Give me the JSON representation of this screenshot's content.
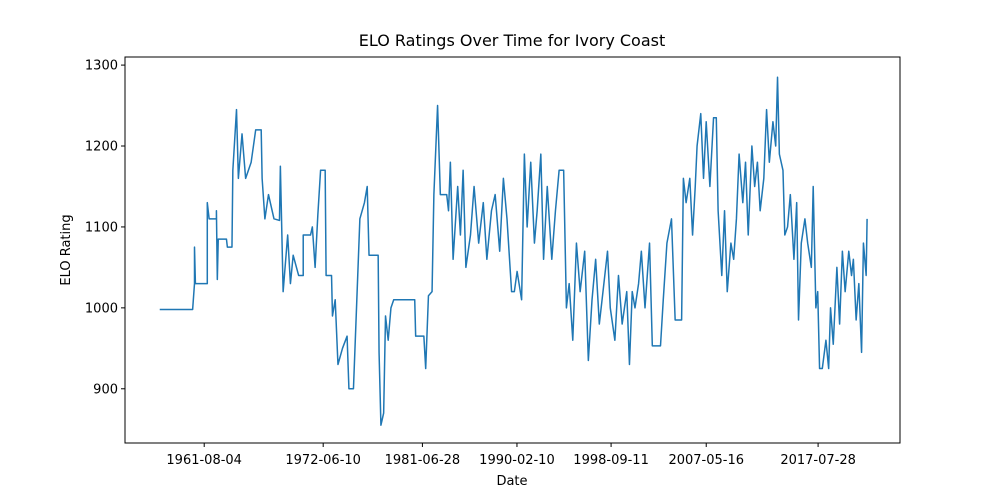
{
  "chart_data": {
    "type": "line",
    "title": "ELO Ratings Over Time for Ivory Coast",
    "xlabel": "Date",
    "ylabel": "ELO Rating",
    "color": "#1f77b4",
    "x": [
      "1957-07-15",
      "1960-07-15",
      "1960-09-15",
      "1960-09-15",
      "1960-10-15",
      "1961-11-15",
      "1961-11-15",
      "1962-01-15",
      "1962-09-15",
      "1962-09-15",
      "1962-10-15",
      "1962-11-15",
      "1963-08-15",
      "1963-09-15",
      "1964-02-15",
      "1964-03-15",
      "1964-07-15",
      "1964-09-15",
      "1965-01-15",
      "1965-05-15",
      "1965-11-15",
      "1966-04-15",
      "1966-10-15",
      "1966-11-15",
      "1967-02-15",
      "1967-06-15",
      "1967-12-15",
      "1968-06-15",
      "1968-07-15",
      "1968-10-15",
      "1969-03-15",
      "1969-06-15",
      "1969-09-15",
      "1970-03-15",
      "1970-08-15",
      "1970-08-15",
      "1971-04-15",
      "1971-06-15",
      "1971-09-15",
      "1971-12-15",
      "1972-03-15",
      "1972-08-15",
      "1972-09-15",
      "1973-03-15",
      "1973-04-15",
      "1973-07-15",
      "1973-10-15",
      "1974-03-15",
      "1974-08-15",
      "1974-10-15",
      "1975-03-15",
      "1975-06-15",
      "1975-10-15",
      "1976-03-15",
      "1976-06-15",
      "1976-08-15",
      "1977-06-15",
      "1977-07-15",
      "1977-09-15",
      "1977-12-15",
      "1978-02-15",
      "1978-05-15",
      "1978-08-15",
      "1978-11-15",
      "1980-10-15",
      "1980-11-15",
      "1981-08-15",
      "1981-10-15",
      "1982-01-15",
      "1982-05-15",
      "1982-07-15",
      "1982-11-15",
      "1983-02-15",
      "1983-09-15",
      "1983-11-15",
      "1984-01-15",
      "1984-04-15",
      "1984-09-15",
      "1984-12-15",
      "1985-03-15",
      "1985-06-15",
      "1985-11-15",
      "1986-03-15",
      "1986-08-15",
      "1987-01-15",
      "1987-05-15",
      "1987-10-15",
      "1988-02-15",
      "1988-07-15",
      "1988-11-15",
      "1989-03-15",
      "1989-08-15",
      "1989-11-15",
      "1990-02-15",
      "1990-07-15",
      "1990-10-15",
      "1991-01-15",
      "1991-05-15",
      "1991-09-15",
      "1991-12-15",
      "1992-04-15",
      "1992-07-15",
      "1992-11-15",
      "1993-04-15",
      "1993-08-15",
      "1993-12-15",
      "1994-05-15",
      "1994-08-15",
      "1994-11-15",
      "1995-03-15",
      "1995-07-15",
      "1995-11-15",
      "1996-04-15",
      "1996-08-15",
      "1996-12-15",
      "1997-04-15",
      "1997-08-15",
      "1997-12-15",
      "1998-05-15",
      "1998-08-15",
      "1999-01-15",
      "1999-05-15",
      "1999-09-15",
      "2000-02-15",
      "2000-05-15",
      "2000-08-15",
      "2000-11-15",
      "2001-03-15",
      "2001-06-15",
      "2001-10-15",
      "2002-03-15",
      "2002-06-15",
      "2003-03-15",
      "2003-06-15",
      "2003-10-15",
      "2004-03-15",
      "2004-07-15",
      "2005-02-15",
      "2005-04-15",
      "2005-07-15",
      "2005-11-15",
      "2006-02-15",
      "2006-05-15",
      "2006-07-15",
      "2006-11-15",
      "2007-02-15",
      "2007-05-15",
      "2007-09-15",
      "2008-01-15",
      "2008-04-15",
      "2008-06-15",
      "2008-10-15",
      "2009-01-15",
      "2009-04-15",
      "2009-08-15",
      "2009-11-15",
      "2010-02-15",
      "2010-05-15",
      "2010-09-15",
      "2010-12-15",
      "2011-03-15",
      "2011-07-15",
      "2011-10-15",
      "2012-01-15",
      "2012-04-15",
      "2012-08-15",
      "2012-11-15",
      "2013-02-15",
      "2013-06-15",
      "2013-09-15",
      "2013-11-15",
      "2014-01-15",
      "2014-05-15",
      "2014-07-15",
      "2014-10-15",
      "2015-01-15",
      "2015-05-15",
      "2015-08-15",
      "2015-10-15",
      "2016-01-15",
      "2016-05-15",
      "2016-08-15",
      "2016-12-15",
      "2017-02-15",
      "2017-05-15",
      "2017-07-15",
      "2017-09-15",
      "2017-12-15",
      "2018-04-15",
      "2018-07-15",
      "2018-09-15",
      "2018-12-15",
      "2019-04-15",
      "2019-07-15",
      "2019-10-15",
      "2020-01-15",
      "2020-05-15",
      "2020-08-15",
      "2020-10-15",
      "2021-01-15",
      "2021-04-15",
      "2021-07-15",
      "2021-09-15",
      "2021-12-15",
      "2022-01-15"
    ],
    "values": [
      998,
      998,
      1030,
      1075,
      1030,
      1030,
      1130,
      1110,
      1110,
      1120,
      1035,
      1085,
      1085,
      1075,
      1075,
      1170,
      1245,
      1160,
      1215,
      1160,
      1180,
      1220,
      1220,
      1160,
      1110,
      1140,
      1110,
      1108,
      1175,
      1020,
      1090,
      1030,
      1065,
      1040,
      1040,
      1090,
      1090,
      1100,
      1050,
      1115,
      1170,
      1170,
      1040,
      1040,
      990,
      1010,
      930,
      950,
      965,
      900,
      900,
      990,
      1110,
      1130,
      1150,
      1065,
      1065,
      945,
      855,
      870,
      990,
      960,
      1000,
      1010,
      1010,
      965,
      965,
      925,
      1015,
      1020,
      1140,
      1250,
      1140,
      1140,
      1120,
      1180,
      1060,
      1150,
      1090,
      1170,
      1050,
      1090,
      1150,
      1080,
      1130,
      1060,
      1120,
      1140,
      1070,
      1160,
      1110,
      1020,
      1020,
      1045,
      1010,
      1190,
      1100,
      1180,
      1080,
      1120,
      1190,
      1060,
      1150,
      1060,
      1120,
      1170,
      1170,
      1000,
      1030,
      960,
      1080,
      1020,
      1070,
      935,
      1010,
      1060,
      980,
      1020,
      1070,
      1000,
      960,
      1040,
      980,
      1020,
      930,
      1020,
      1000,
      1030,
      1070,
      1000,
      1080,
      953,
      953,
      1010,
      1080,
      1110,
      985,
      985,
      1160,
      1130,
      1160,
      1090,
      1150,
      1200,
      1240,
      1160,
      1230,
      1150,
      1235,
      1235,
      1120,
      1040,
      1120,
      1020,
      1080,
      1060,
      1110,
      1190,
      1130,
      1180,
      1090,
      1200,
      1150,
      1180,
      1120,
      1160,
      1245,
      1180,
      1230,
      1200,
      1285,
      1190,
      1170,
      1090,
      1100,
      1140,
      1060,
      1130,
      985,
      1080,
      1110,
      1080,
      1050,
      1150,
      1000,
      1020,
      925,
      925,
      960,
      925,
      1000,
      955,
      1050,
      980,
      1070,
      1020,
      1070,
      1040,
      1060,
      985,
      1030,
      945,
      1080,
      1040,
      1110
    ],
    "xlim": [
      "1954-05-15",
      "2025-01-15"
    ],
    "xticks": [
      "1961-08-04",
      "1972-06-10",
      "1981-06-28",
      "1990-02-10",
      "1998-09-11",
      "2007-05-16",
      "2017-07-28"
    ],
    "ylim": [
      833,
      1310
    ],
    "yticks": [
      900,
      1000,
      1100,
      1200,
      1300
    ]
  }
}
